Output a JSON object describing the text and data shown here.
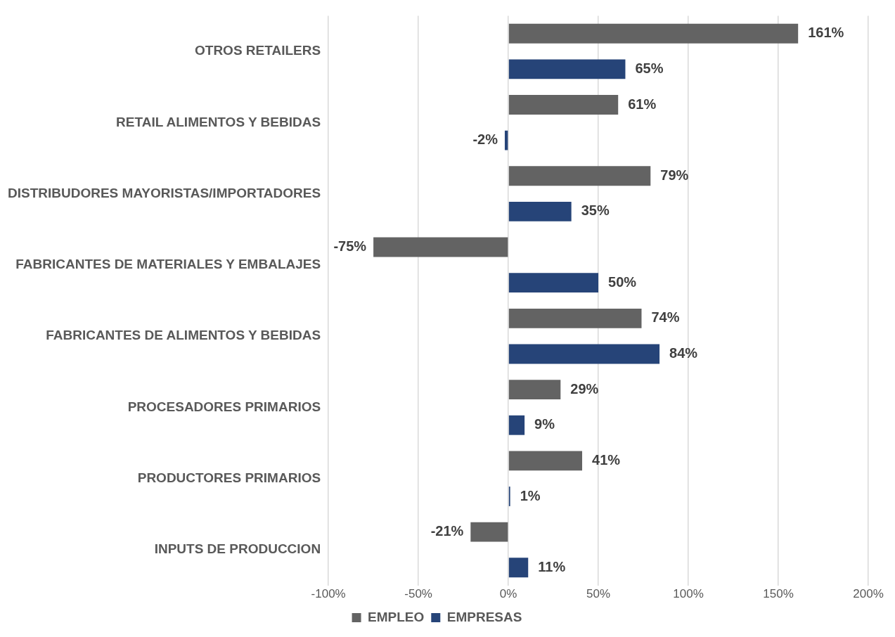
{
  "chart_data": {
    "type": "bar",
    "orientation": "horizontal",
    "categories": [
      "OTROS RETAILERS",
      "RETAIL ALIMENTOS Y BEBIDAS",
      "DISTRIBUDORES MAYORISTAS/IMPORTADORES",
      "FABRICANTES DE MATERIALES Y EMBALAJES",
      "FABRICANTES DE ALIMENTOS Y BEBIDAS",
      "PROCESADORES PRIMARIOS",
      "PRODUCTORES PRIMARIOS",
      "INPUTS DE PRODUCCION"
    ],
    "series": [
      {
        "name": "EMPLEO",
        "color": "#636363",
        "values": [
          161,
          61,
          79,
          -75,
          74,
          29,
          41,
          -21
        ],
        "value_labels": [
          "161%",
          "61%",
          "79%",
          "-75%",
          "74%",
          "29%",
          "41%",
          "-21%"
        ]
      },
      {
        "name": "EMPRESAS",
        "color": "#264478",
        "values": [
          65,
          -2,
          35,
          50,
          84,
          9,
          1,
          11
        ],
        "value_labels": [
          "65%",
          "-2%",
          "35%",
          "50%",
          "84%",
          "9%",
          "1%",
          "11%"
        ]
      }
    ],
    "xlim": [
      -100,
      200
    ],
    "xticks": [
      {
        "value": -100,
        "label": "-100%"
      },
      {
        "value": -50,
        "label": "-50%"
      },
      {
        "value": 0,
        "label": "0%"
      },
      {
        "value": 50,
        "label": "50%"
      },
      {
        "value": 100,
        "label": "100%"
      },
      {
        "value": 150,
        "label": "150%"
      },
      {
        "value": 200,
        "label": "200%"
      }
    ],
    "grid": "x",
    "legend": "bottom"
  }
}
